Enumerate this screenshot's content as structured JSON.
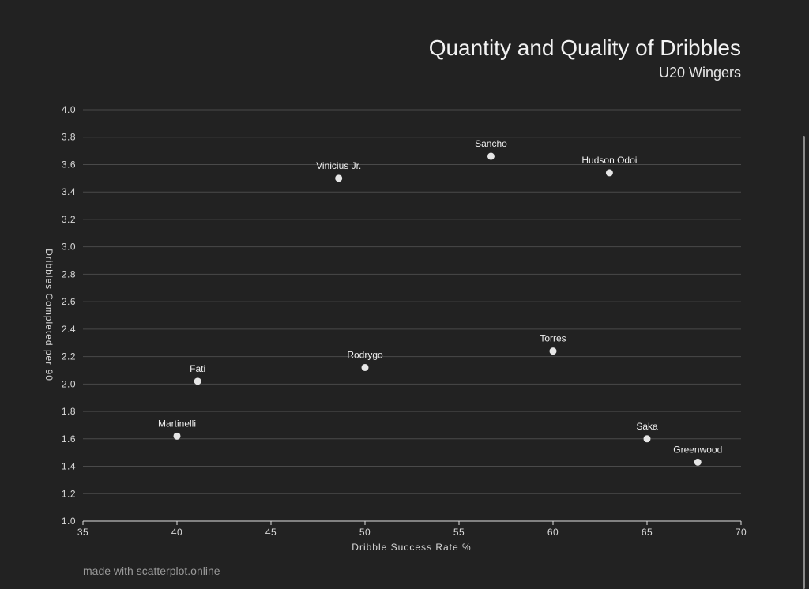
{
  "chart_data": {
    "type": "scatter",
    "title": "Quantity and Quality of Dribbles",
    "subtitle": "U20 Wingers",
    "xlabel": "Dribble Success Rate %",
    "ylabel": "Dribbles Completed per 90",
    "xlim": [
      35,
      70
    ],
    "ylim": [
      1.0,
      4.0
    ],
    "xticks": [
      "35",
      "40",
      "45",
      "50",
      "55",
      "60",
      "65",
      "70"
    ],
    "yticks": [
      "1.0",
      "1.2",
      "1.4",
      "1.6",
      "1.8",
      "2.0",
      "2.2",
      "2.4",
      "2.6",
      "2.8",
      "3.0",
      "3.2",
      "3.4",
      "3.6",
      "3.8",
      "4.0"
    ],
    "grid": true,
    "points": [
      {
        "label": "Sancho",
        "x": 56.7,
        "y": 3.66
      },
      {
        "label": "Hudson Odoi",
        "x": 63.0,
        "y": 3.54
      },
      {
        "label": "Vinicius Jr.",
        "x": 48.6,
        "y": 3.5
      },
      {
        "label": "Torres",
        "x": 60.0,
        "y": 2.24
      },
      {
        "label": "Rodrygo",
        "x": 50.0,
        "y": 2.12
      },
      {
        "label": "Fati",
        "x": 41.1,
        "y": 2.02
      },
      {
        "label": "Martinelli",
        "x": 40.0,
        "y": 1.62
      },
      {
        "label": "Saka",
        "x": 65.0,
        "y": 1.6
      },
      {
        "label": "Greenwood",
        "x": 67.7,
        "y": 1.43
      }
    ]
  },
  "footer": "made with scatterplot.online"
}
